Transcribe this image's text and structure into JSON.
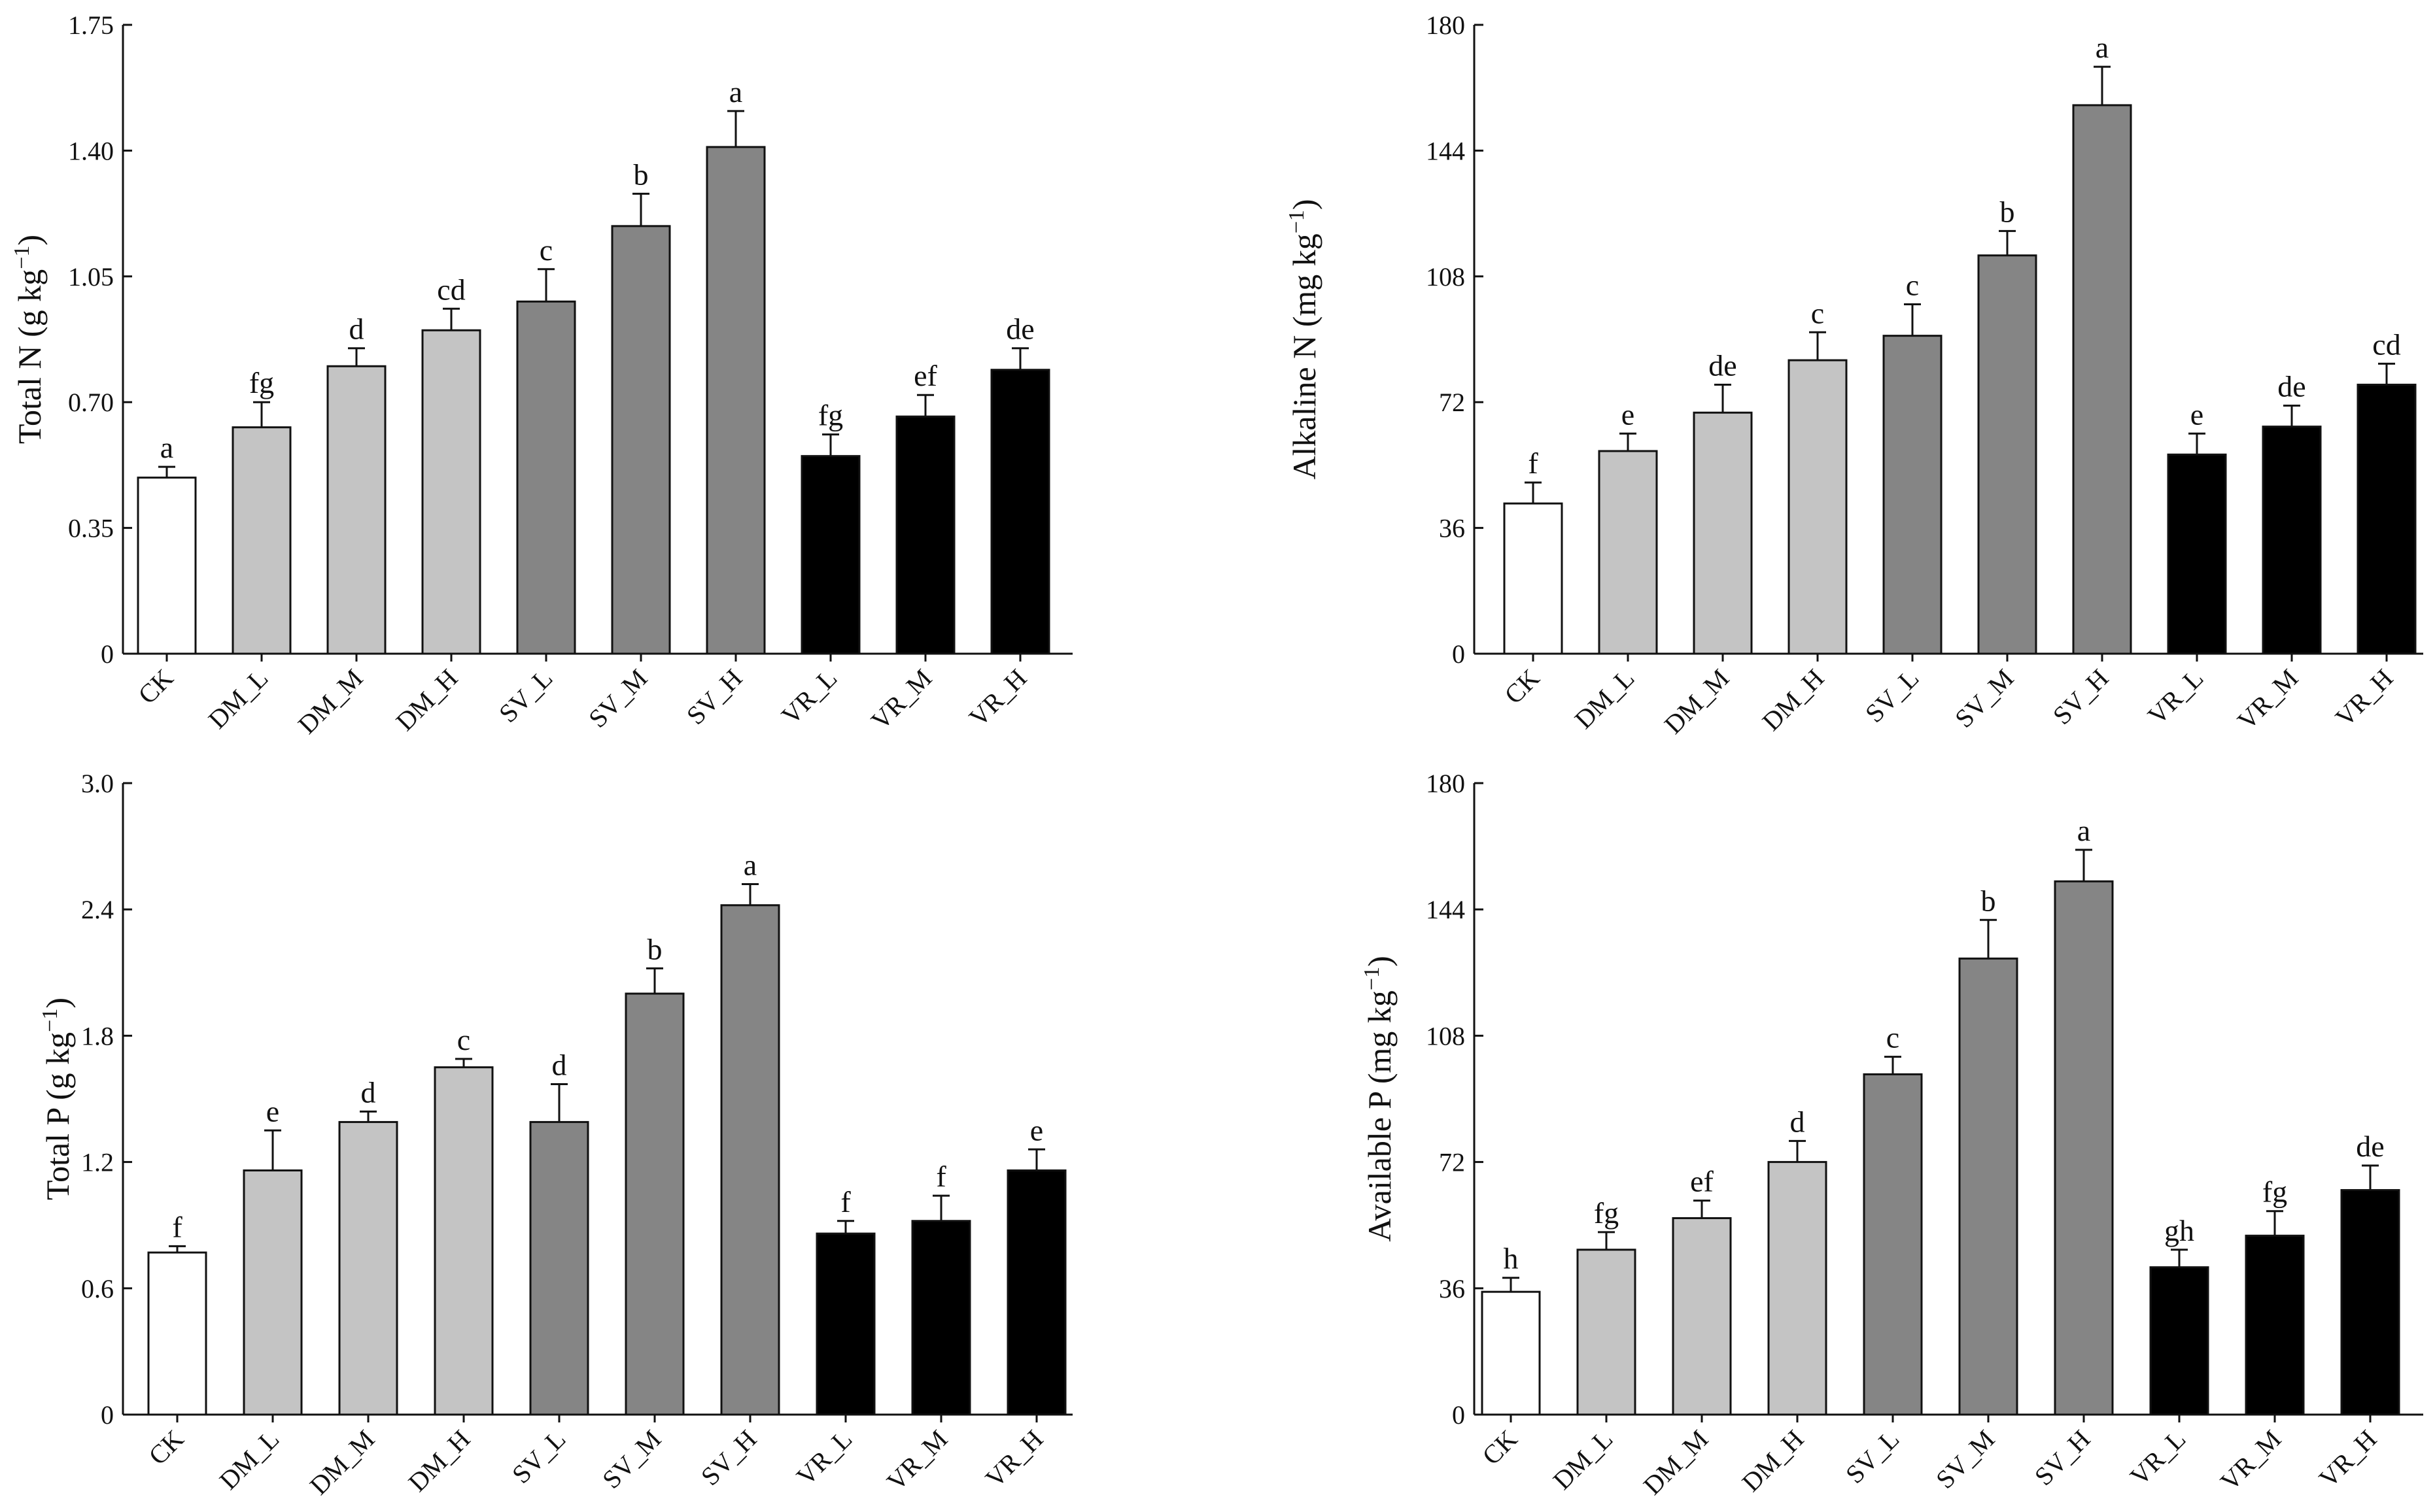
{
  "colors": {
    "white": "#ffffff",
    "light_gray": "#c4c4c4",
    "dark_gray": "#858585",
    "black": "#000000"
  },
  "chart_data": [
    {
      "id": "total-n",
      "type": "bar",
      "title": "",
      "ylabel": "Total N (g kg",
      "ylabel_sup": "−1",
      "ylabel_end": ")",
      "xlabel": "",
      "categories": [
        "CK",
        "DM_L",
        "DM_M",
        "DM_H",
        "SV_L",
        "SV_M",
        "SV_H",
        "VR_L",
        "VR_M",
        "VR_H"
      ],
      "values": [
        0.49,
        0.63,
        0.8,
        0.9,
        0.98,
        1.19,
        1.41,
        0.55,
        0.66,
        0.79
      ],
      "errors": [
        0.03,
        0.07,
        0.05,
        0.06,
        0.09,
        0.09,
        0.1,
        0.06,
        0.06,
        0.06
      ],
      "letters": [
        "a",
        "fg",
        "d",
        "cd",
        "c",
        "b",
        "a",
        "fg",
        "ef",
        "de"
      ],
      "bar_colors": [
        "white",
        "light_gray",
        "light_gray",
        "light_gray",
        "dark_gray",
        "dark_gray",
        "dark_gray",
        "black",
        "black",
        "black"
      ],
      "ylim": [
        0,
        1.75
      ],
      "yticks": [
        "0",
        "0.35",
        "0.70",
        "1.05",
        "1.40",
        "1.75"
      ],
      "ytick_values": [
        0,
        0.35,
        0.7,
        1.05,
        1.4,
        1.75
      ]
    },
    {
      "id": "alkaline-n",
      "type": "bar",
      "title": "",
      "ylabel": "Alkaline N (mg kg",
      "ylabel_sup": "−1",
      "ylabel_end": ")",
      "xlabel": "",
      "categories": [
        "CK",
        "DM_L",
        "DM_M",
        "DM_H",
        "SV_L",
        "SV_M",
        "SV_H",
        "VR_L",
        "VR_M",
        "VR_H"
      ],
      "values": [
        43,
        58,
        69,
        84,
        91,
        114,
        157,
        57,
        65,
        77
      ],
      "errors": [
        6,
        5,
        8,
        8,
        9,
        7,
        11,
        6,
        6,
        6
      ],
      "letters": [
        "f",
        "e",
        "de",
        "c",
        "c",
        "b",
        "a",
        "e",
        "de",
        "cd"
      ],
      "bar_colors": [
        "white",
        "light_gray",
        "light_gray",
        "light_gray",
        "dark_gray",
        "dark_gray",
        "dark_gray",
        "black",
        "black",
        "black"
      ],
      "ylim": [
        0,
        180
      ],
      "yticks": [
        "0",
        "36",
        "72",
        "108",
        "144",
        "180"
      ],
      "ytick_values": [
        0,
        36,
        72,
        108,
        144,
        180
      ]
    },
    {
      "id": "total-p",
      "type": "bar",
      "title": "",
      "ylabel": "Total P (g kg",
      "ylabel_sup": "−1",
      "ylabel_end": ")",
      "xlabel": "",
      "categories": [
        "CK",
        "DM_L",
        "DM_M",
        "DM_H",
        "SV_L",
        "SV_M",
        "SV_H",
        "VR_L",
        "VR_M",
        "VR_H"
      ],
      "values": [
        0.77,
        1.16,
        1.39,
        1.65,
        1.39,
        2.0,
        2.42,
        0.86,
        0.92,
        1.16
      ],
      "errors": [
        0.03,
        0.19,
        0.05,
        0.04,
        0.18,
        0.12,
        0.1,
        0.06,
        0.12,
        0.1
      ],
      "letters": [
        "f",
        "e",
        "d",
        "c",
        "d",
        "b",
        "a",
        "f",
        "f",
        "e"
      ],
      "bar_colors": [
        "white",
        "light_gray",
        "light_gray",
        "light_gray",
        "dark_gray",
        "dark_gray",
        "dark_gray",
        "black",
        "black",
        "black"
      ],
      "ylim": [
        0,
        3.0
      ],
      "yticks": [
        "0",
        "0.6",
        "1.2",
        "1.8",
        "2.4",
        "3.0"
      ],
      "ytick_values": [
        0,
        0.6,
        1.2,
        1.8,
        2.4,
        3.0
      ]
    },
    {
      "id": "available-p",
      "type": "bar",
      "title": "",
      "ylabel": "Available P (mg kg",
      "ylabel_sup": "−1",
      "ylabel_end": ")",
      "xlabel": "",
      "categories": [
        "CK",
        "DM_L",
        "DM_M",
        "DM_H",
        "SV_L",
        "SV_M",
        "SV_H",
        "VR_L",
        "VR_M",
        "VR_H"
      ],
      "values": [
        35,
        47,
        56,
        72,
        97,
        130,
        152,
        42,
        51,
        64
      ],
      "errors": [
        4,
        5,
        5,
        6,
        5,
        11,
        9,
        5,
        7,
        7
      ],
      "letters": [
        "h",
        "fg",
        "ef",
        "d",
        "c",
        "b",
        "a",
        "gh",
        "fg",
        "de"
      ],
      "bar_colors": [
        "white",
        "light_gray",
        "light_gray",
        "light_gray",
        "dark_gray",
        "dark_gray",
        "dark_gray",
        "black",
        "black",
        "black"
      ],
      "ylim": [
        0,
        180
      ],
      "yticks": [
        "0",
        "36",
        "72",
        "108",
        "144",
        "180"
      ],
      "ytick_values": [
        0,
        36,
        72,
        108,
        144,
        180
      ]
    }
  ]
}
